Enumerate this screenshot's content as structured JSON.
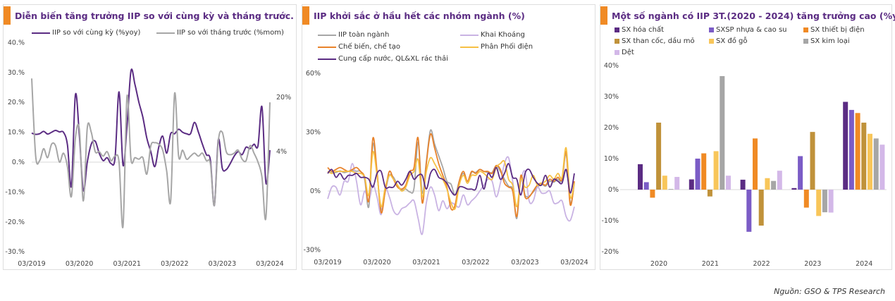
{
  "source": "Nguồn: GSO & TPS Research",
  "chart_data": [
    {
      "type": "line",
      "title": "Diễn biến tăng trưởng IIP so với cùng kỳ và tháng trước.",
      "x_tick_labels": [
        "03/2019",
        "03/2020",
        "03/2021",
        "03/2022",
        "03/2023",
        "03/2024"
      ],
      "x_range": [
        "03/2019",
        "03/2024"
      ],
      "y_tick_labels": [
        "40.%",
        "30.%",
        "20.%",
        "10.%",
        "0.%",
        "-10.%",
        "-20.%",
        "-30.%"
      ],
      "ylim": [
        -30,
        40
      ],
      "end_labels": [
        "20%",
        "4%"
      ],
      "series": [
        {
          "name": "IIP so với cùng kỳ (%yoy)",
          "color": "#5b2c83",
          "values": [
            9.7,
            9.3,
            9.5,
            10.3,
            9.4,
            10,
            10.6,
            10.1,
            10,
            5.8,
            -8,
            22.5,
            9,
            -9.5,
            0,
            6,
            7,
            3,
            0.5,
            1.5,
            -0.5,
            1.5,
            23.5,
            -1,
            12,
            30.5,
            26,
            20,
            15,
            8,
            3.5,
            -1.5,
            5,
            8.7,
            3,
            9.5,
            9.5,
            11,
            10,
            9.5,
            9.5,
            13.3,
            10,
            6,
            2.5,
            0.7,
            -14.5,
            7.5,
            -2,
            -2.5,
            -0.5,
            2,
            3.5,
            2.5,
            5,
            4.5,
            6,
            5.5,
            18.5,
            -7,
            4
          ]
        },
        {
          "name": "IIP so với tháng trước (%mom)",
          "color": "#a6a6a6",
          "values": [
            28,
            2,
            0.5,
            4.5,
            1.5,
            6,
            5.5,
            0,
            3,
            -1.5,
            -11.5,
            8,
            11,
            -13,
            11.5,
            10,
            3.5,
            3.5,
            2,
            3.5,
            0.5,
            2,
            0,
            -21.5,
            22,
            1,
            1.5,
            1,
            1.5,
            -4,
            5.5,
            6.5,
            6,
            4,
            -3,
            -13,
            23,
            2,
            4,
            1,
            2,
            3,
            2,
            3,
            0.5,
            -0.5,
            -14.5,
            7,
            10,
            3.5,
            2.5,
            3,
            4,
            1,
            0.5,
            5.5,
            3,
            0,
            -5,
            -18.5,
            20
          ]
        }
      ]
    },
    {
      "type": "line",
      "title": "IIP khởi sắc ở hầu hết các nhóm ngành (%)",
      "x_tick_labels": [
        "03/2019",
        "03/2020",
        "03/2021",
        "03/2022",
        "03/2023",
        "03/2024"
      ],
      "x_range": [
        "03/2019",
        "03/2024"
      ],
      "y_tick_labels": [
        "60%",
        "30%",
        "0%",
        "-30%"
      ],
      "ylim": [
        -30,
        60
      ],
      "series": [
        {
          "name": "IIP toàn ngành",
          "color": "#a6a6a6",
          "values": [
            10,
            9.3,
            9.5,
            10.3,
            9.4,
            10,
            10.6,
            10.1,
            10,
            5.8,
            -8,
            24,
            9,
            -9.5,
            0,
            8,
            7,
            3,
            0.5,
            1,
            -0.5,
            1.5,
            25,
            -1,
            15,
            31,
            24,
            18,
            12,
            5,
            3.5,
            -2,
            5,
            9,
            4,
            9.5,
            9.5,
            11,
            10,
            9.5,
            9.5,
            13,
            10,
            6,
            2.5,
            0.7,
            -14,
            7.5,
            -2,
            -2.5,
            -0.5,
            2,
            3.5,
            2.5,
            5,
            4.5,
            6,
            5.5,
            19,
            -6,
            4
          ]
        },
        {
          "name": "Khai Khoáng",
          "color": "#c9b3e3",
          "values": [
            -4,
            2,
            2,
            -2,
            5,
            5,
            14,
            5,
            -7,
            0,
            -5,
            3,
            -3,
            -12,
            1,
            -3,
            -10,
            -12,
            -9,
            -8,
            -6,
            -5,
            -14,
            -22,
            -6,
            2,
            -2,
            -10,
            -5,
            -9,
            -6,
            -7,
            -8,
            -2,
            -7,
            -5,
            -3,
            0,
            3,
            6,
            5,
            -3,
            4,
            14,
            17,
            5,
            -8,
            5,
            10,
            -5,
            -5,
            2,
            -1,
            -1,
            0,
            -6,
            -6,
            -5,
            -13,
            -15,
            -8
          ]
        },
        {
          "name": "Chế biến, chế tạo",
          "color": "#e8822a",
          "values": [
            12,
            10,
            11,
            12,
            11,
            10,
            11,
            12,
            10,
            7,
            -5,
            27,
            10,
            -11,
            0,
            10,
            6,
            2,
            1,
            3,
            10,
            12,
            27,
            -6,
            14,
            29,
            22,
            14,
            8,
            2,
            -9,
            -7,
            5,
            10,
            5,
            10,
            9,
            11,
            10,
            10,
            9,
            13,
            11,
            4,
            2,
            0,
            -13,
            8,
            -3,
            -3,
            0,
            3,
            4,
            3,
            6,
            5,
            7,
            6,
            20,
            -7,
            5
          ]
        },
        {
          "name": "Phân Phối điện",
          "color": "#f6c044",
          "values": [
            10,
            9,
            10,
            10,
            10,
            10,
            10,
            9,
            9,
            7,
            -2,
            20,
            8,
            -8,
            2,
            8,
            6,
            3,
            0,
            2,
            8,
            10,
            16,
            -3,
            10,
            17,
            14,
            10,
            6,
            1,
            -6,
            -9,
            3,
            8,
            4,
            8,
            8,
            10,
            9,
            7,
            6,
            12,
            14,
            15,
            6,
            3,
            -8,
            6,
            2,
            3,
            8,
            3,
            4,
            5,
            8,
            6,
            9,
            7,
            22,
            -3,
            4
          ]
        },
        {
          "name": "Cung cấp nước, QL&XL rác thải",
          "color": "#5b2c83",
          "values": [
            9,
            11,
            7,
            9,
            6,
            8,
            8,
            9,
            7,
            7,
            6,
            2,
            9,
            10,
            2,
            2,
            2,
            5,
            3,
            6,
            10,
            6,
            8,
            8,
            1,
            9,
            11,
            7,
            6,
            4,
            0,
            -2,
            2,
            2,
            1,
            1,
            1,
            8,
            1,
            9,
            7,
            12,
            6,
            9,
            14,
            7,
            6,
            -2,
            9,
            11,
            7,
            4,
            3,
            8,
            2,
            6,
            5,
            4,
            11,
            -1,
            9
          ]
        }
      ]
    },
    {
      "type": "bar",
      "title": "Một số ngành có IIP 3T.(2020 - 2024) tăng trưởng cao (%yoy)",
      "categories": [
        "2020",
        "2021",
        "2022",
        "2023",
        "2024"
      ],
      "y_tick_labels": [
        "40%",
        "30%",
        "20%",
        "10%",
        "0%",
        "-10%",
        "-20%"
      ],
      "ylim": [
        -20,
        40
      ],
      "legend": "top",
      "series": [
        {
          "name": "SX hóa chất",
          "color": "#5b2c83",
          "values": [
            8.2,
            3.3,
            3.2,
            0.5,
            28.3
          ]
        },
        {
          "name": "SXSP nhựa & cao su",
          "color": "#7b5cc6",
          "values": [
            2.4,
            10.0,
            -13.6,
            10.8,
            25.7
          ]
        },
        {
          "name": "SX thiết bị điện",
          "color": "#f08a24",
          "values": [
            -2.6,
            11.7,
            16.5,
            -5.8,
            24.7
          ]
        },
        {
          "name": "SX than cốc, dầu mỏ",
          "color": "#c0923a",
          "values": [
            21.6,
            -2.2,
            -11.6,
            18.6,
            21.6
          ]
        },
        {
          "name": "SX đồ gỗ",
          "color": "#f8c65a",
          "values": [
            4.5,
            12.4,
            3.7,
            -8.5,
            18.0
          ]
        },
        {
          "name": "SX kim loại",
          "color": "#a6a6a6",
          "values": [
            0.2,
            36.6,
            2.8,
            -7.3,
            16.5
          ]
        },
        {
          "name": "Dệt",
          "color": "#d3b8e8",
          "values": [
            4.1,
            4.5,
            6.1,
            -7.4,
            14.5
          ]
        }
      ]
    }
  ]
}
